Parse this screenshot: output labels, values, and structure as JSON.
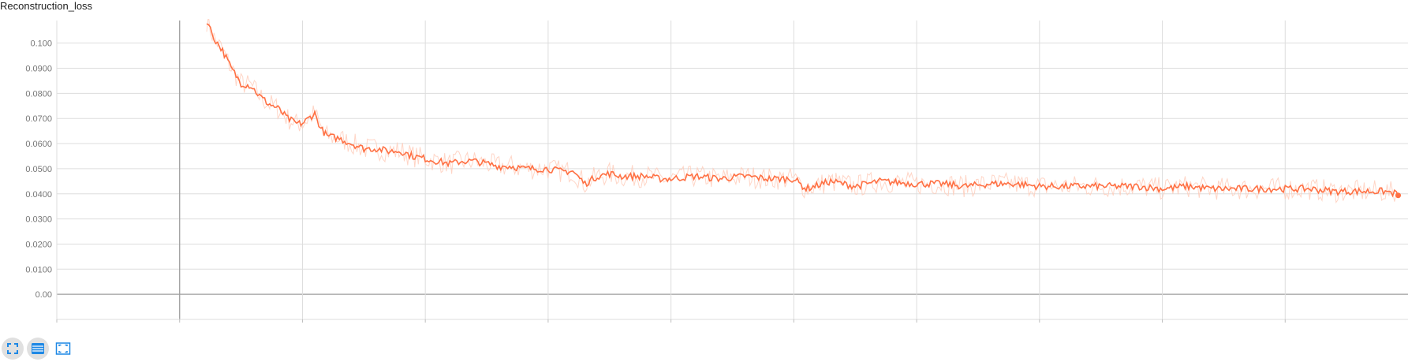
{
  "chart_title": "Reconstruction_loss",
  "toolbar": {
    "buttons": [
      {
        "name": "expand-chart-button",
        "icon": "fullscreen-icon",
        "active": true
      },
      {
        "name": "toggle-y-log-button",
        "icon": "list-lines-icon",
        "active": true
      },
      {
        "name": "fit-domain-button",
        "icon": "fit-to-data-icon",
        "active": false
      }
    ]
  },
  "colors": {
    "smoothed": "#ff7043",
    "raw": "#ffcbb8",
    "grid": "#dddddd",
    "axis": "#9e9e9e"
  },
  "chart_data": {
    "type": "line",
    "title": "Reconstruction_loss",
    "xlabel": "",
    "ylabel": "",
    "ylim": [
      -0.01,
      0.109
    ],
    "xlim": [
      -1.0,
      10.0
    ],
    "yticks": [
      "0.00",
      "0.0100",
      "0.0200",
      "0.0300",
      "0.0400",
      "0.0500",
      "0.0600",
      "0.0700",
      "0.0800",
      "0.0900",
      "0.100"
    ],
    "ytick_values": [
      0.0,
      0.01,
      0.02,
      0.03,
      0.04,
      0.05,
      0.06,
      0.07,
      0.08,
      0.09,
      0.1
    ],
    "x_gridlines": [
      0,
      1,
      2,
      3,
      4,
      5,
      6,
      7,
      8,
      9
    ],
    "grid": true,
    "series": [
      {
        "role": "smoothed",
        "x": [
          0.22,
          0.28,
          0.35,
          0.42,
          0.5,
          0.58,
          0.65,
          0.72,
          0.8,
          0.88,
          0.95,
          1.0,
          1.05,
          1.1,
          1.15,
          1.2,
          1.3,
          1.4,
          1.5,
          1.6,
          1.7,
          1.8,
          1.9,
          2.0,
          2.1,
          2.2,
          2.3,
          2.4,
          2.5,
          2.6,
          2.7,
          2.8,
          2.9,
          3.0,
          3.1,
          3.2,
          3.3,
          3.4,
          3.5,
          3.6,
          3.7,
          3.8,
          3.9,
          4.0,
          4.2,
          4.4,
          4.6,
          4.8,
          5.0,
          5.1,
          5.3,
          5.5,
          5.7,
          6.0,
          6.2,
          6.4,
          6.6,
          6.8,
          7.0,
          7.2,
          7.4,
          7.6,
          7.8,
          8.0,
          8.2,
          8.4,
          8.6,
          8.8,
          9.0,
          9.2,
          9.4,
          9.6,
          9.8,
          9.92
        ],
        "y": [
          0.109,
          0.102,
          0.097,
          0.09,
          0.084,
          0.083,
          0.079,
          0.076,
          0.074,
          0.07,
          0.068,
          0.068,
          0.07,
          0.072,
          0.066,
          0.063,
          0.062,
          0.06,
          0.058,
          0.058,
          0.057,
          0.057,
          0.055,
          0.054,
          0.053,
          0.052,
          0.053,
          0.053,
          0.052,
          0.051,
          0.051,
          0.05,
          0.05,
          0.05,
          0.049,
          0.049,
          0.044,
          0.047,
          0.048,
          0.047,
          0.047,
          0.047,
          0.046,
          0.046,
          0.047,
          0.046,
          0.047,
          0.046,
          0.046,
          0.042,
          0.045,
          0.043,
          0.045,
          0.044,
          0.044,
          0.043,
          0.044,
          0.044,
          0.043,
          0.043,
          0.043,
          0.043,
          0.043,
          0.042,
          0.043,
          0.042,
          0.042,
          0.042,
          0.042,
          0.042,
          0.041,
          0.041,
          0.041,
          0.04
        ]
      }
    ]
  }
}
